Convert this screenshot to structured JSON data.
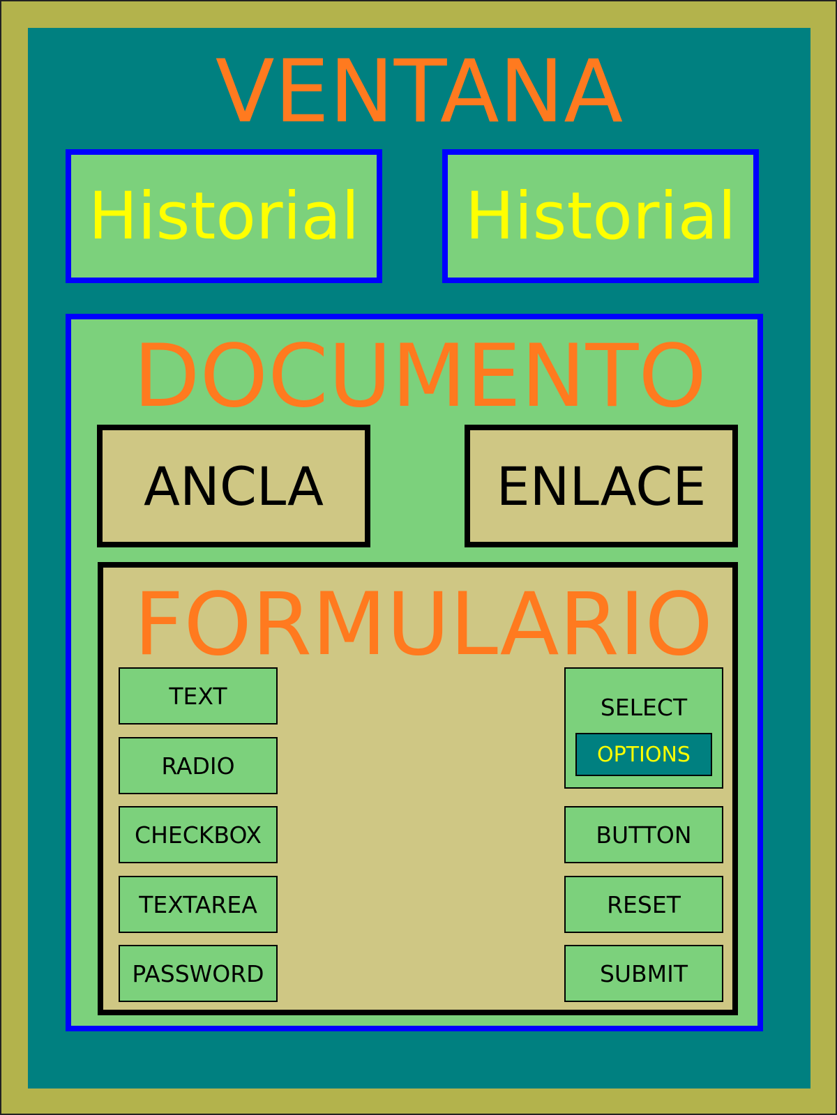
{
  "window": {
    "title": "VENTANA"
  },
  "history": [
    {
      "label": "Historial"
    },
    {
      "label": "Historial"
    }
  ],
  "document": {
    "title": "DOCUMENTO",
    "anchor_label": "ANCLA",
    "link_label": "ENLACE",
    "form": {
      "title": "FORMULARIO",
      "left_controls": [
        "TEXT",
        "RADIO",
        "CHECKBOX",
        "TEXTAREA",
        "PASSWORD"
      ],
      "select": {
        "label": "SELECT",
        "options_label": "OPTIONS"
      },
      "right_controls": [
        "BUTTON",
        "RESET",
        "SUBMIT"
      ]
    }
  },
  "colors": {
    "outer_frame": "#b3b34c",
    "window": "#008080",
    "panel_green": "#7cd17c",
    "panel_tan": "#cfc784",
    "border_blue": "#0000ff",
    "title_orange": "#ff7a1f",
    "label_yellow": "#ffff00"
  }
}
